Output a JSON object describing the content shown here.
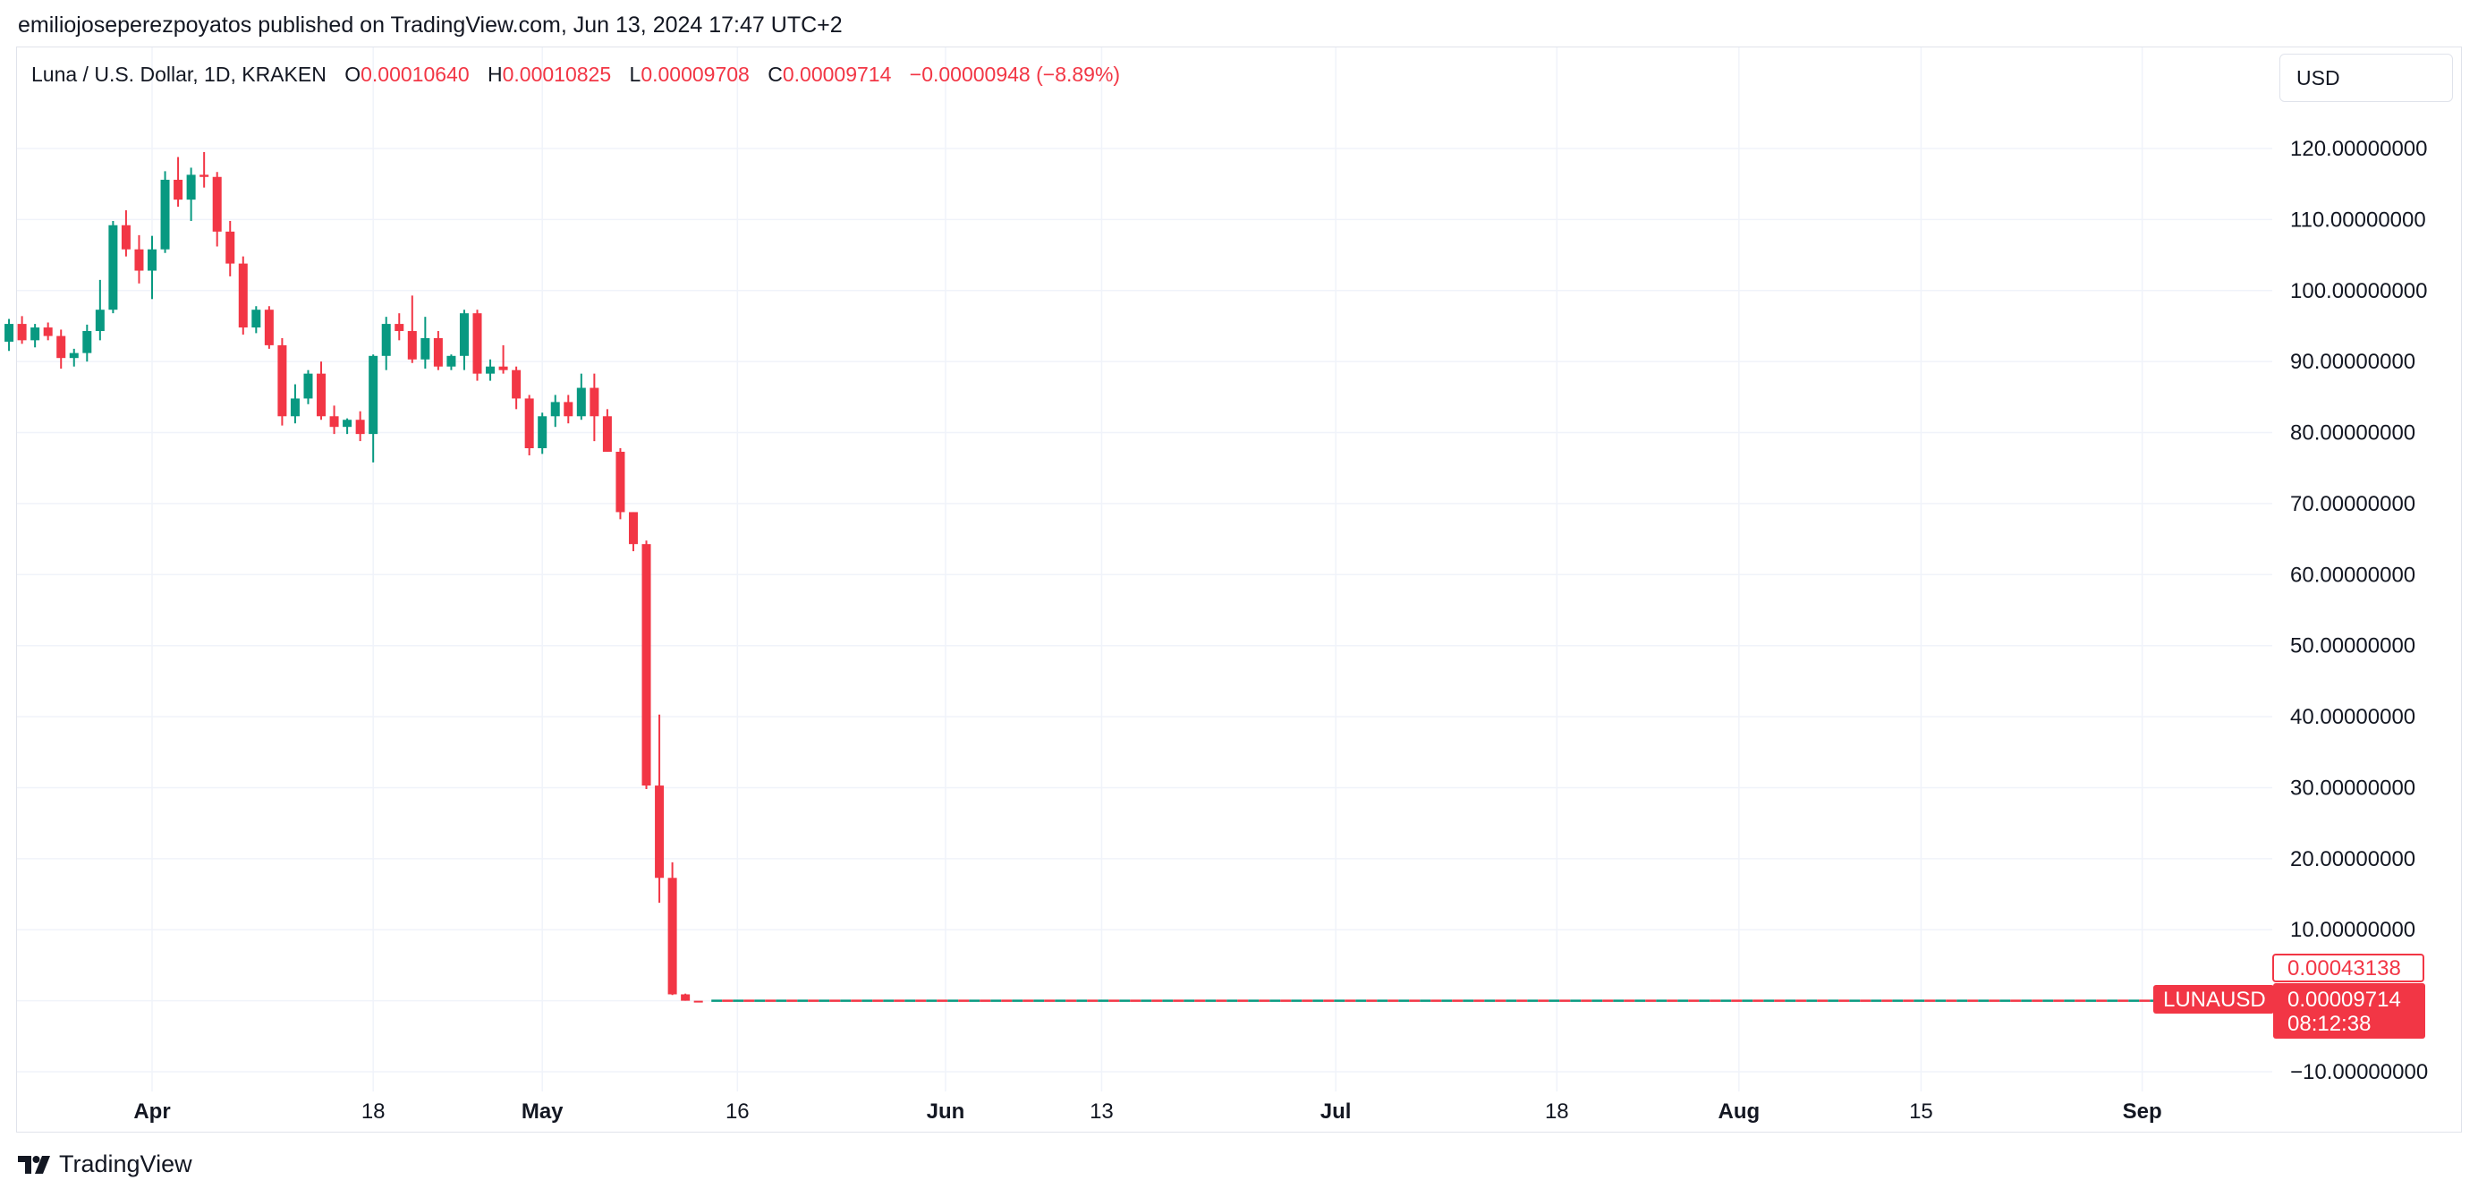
{
  "header": {
    "published": "emiliojoseperezpoyatos published on TradingView.com, Jun 13, 2024 17:47 UTC+2"
  },
  "legend": {
    "symbol": "Luna / U.S. Dollar, 1D, KRAKEN",
    "o_label": "O",
    "o_value": "0.00010640",
    "h_label": "H",
    "h_value": "0.00010825",
    "l_label": "L",
    "l_value": "0.00009708",
    "c_label": "C",
    "c_value": "0.00009714",
    "change": "−0.00000948 (−8.89%)"
  },
  "currency_button": "USD",
  "footer": {
    "brand": "TradingView"
  },
  "colors": {
    "up": "#089981",
    "down": "#f23645",
    "grid": "#f0f3fa",
    "axis_text": "#131722"
  },
  "chart_data": {
    "type": "candlestick",
    "symbol": "LUNAUSD",
    "y_ticks": [
      120,
      110,
      100,
      90,
      80,
      70,
      60,
      50,
      40,
      30,
      20,
      10,
      -10
    ],
    "y_tick_labels": [
      "120.00000000",
      "110.00000000",
      "100.00000000",
      "90.00000000",
      "80.00000000",
      "70.00000000",
      "60.00000000",
      "50.00000000",
      "40.00000000",
      "30.00000000",
      "20.00000000",
      "10.00000000",
      "−10.00000000"
    ],
    "ylim": [
      -10,
      120
    ],
    "x_start": "2022-03-21",
    "x_end": "2022-09-06",
    "x_ticks": [
      {
        "date": "2022-04-01",
        "label": "Apr",
        "bold": true
      },
      {
        "date": "2022-04-18",
        "label": "18",
        "bold": false
      },
      {
        "date": "2022-05-01",
        "label": "May",
        "bold": true
      },
      {
        "date": "2022-05-16",
        "label": "16",
        "bold": false
      },
      {
        "date": "2022-06-01",
        "label": "Jun",
        "bold": true
      },
      {
        "date": "2022-06-13",
        "label": "13",
        "bold": false
      },
      {
        "date": "2022-07-01",
        "label": "Jul",
        "bold": true
      },
      {
        "date": "2022-07-18",
        "label": "18",
        "bold": false
      },
      {
        "date": "2022-08-01",
        "label": "Aug",
        "bold": true
      },
      {
        "date": "2022-08-15",
        "label": "15",
        "bold": false
      },
      {
        "date": "2022-09-01",
        "label": "Sep",
        "bold": true
      }
    ],
    "candles": [
      {
        "date": "2022-03-21",
        "o": 92.8,
        "h": 96.0,
        "l": 91.5,
        "c": 95.3
      },
      {
        "date": "2022-03-22",
        "o": 95.3,
        "h": 96.4,
        "l": 92.5,
        "c": 93.0
      },
      {
        "date": "2022-03-23",
        "o": 93.0,
        "h": 95.3,
        "l": 92.0,
        "c": 94.8
      },
      {
        "date": "2022-03-24",
        "o": 94.8,
        "h": 95.5,
        "l": 93.0,
        "c": 93.6
      },
      {
        "date": "2022-03-25",
        "o": 93.6,
        "h": 94.5,
        "l": 89.0,
        "c": 90.5
      },
      {
        "date": "2022-03-26",
        "o": 90.5,
        "h": 91.8,
        "l": 89.3,
        "c": 91.2
      },
      {
        "date": "2022-03-27",
        "o": 91.2,
        "h": 95.2,
        "l": 90.0,
        "c": 94.3
      },
      {
        "date": "2022-03-28",
        "o": 94.3,
        "h": 101.5,
        "l": 93.0,
        "c": 97.3
      },
      {
        "date": "2022-03-29",
        "o": 97.3,
        "h": 109.8,
        "l": 96.8,
        "c": 109.2
      },
      {
        "date": "2022-03-30",
        "o": 109.2,
        "h": 111.3,
        "l": 104.8,
        "c": 105.8
      },
      {
        "date": "2022-03-31",
        "o": 105.8,
        "h": 107.8,
        "l": 101.0,
        "c": 102.8
      },
      {
        "date": "2022-04-01",
        "o": 102.8,
        "h": 107.7,
        "l": 98.8,
        "c": 105.8
      },
      {
        "date": "2022-04-02",
        "o": 105.8,
        "h": 116.8,
        "l": 105.3,
        "c": 115.6
      },
      {
        "date": "2022-04-03",
        "o": 115.6,
        "h": 118.8,
        "l": 111.8,
        "c": 112.8
      },
      {
        "date": "2022-04-04",
        "o": 112.8,
        "h": 117.3,
        "l": 109.8,
        "c": 116.3
      },
      {
        "date": "2022-04-05",
        "o": 116.3,
        "h": 119.5,
        "l": 114.5,
        "c": 116.0
      },
      {
        "date": "2022-04-06",
        "o": 116.0,
        "h": 116.7,
        "l": 106.2,
        "c": 108.3
      },
      {
        "date": "2022-04-07",
        "o": 108.3,
        "h": 109.8,
        "l": 102.0,
        "c": 103.8
      },
      {
        "date": "2022-04-08",
        "o": 103.8,
        "h": 104.8,
        "l": 93.8,
        "c": 94.8
      },
      {
        "date": "2022-04-09",
        "o": 94.8,
        "h": 97.8,
        "l": 94.0,
        "c": 97.3
      },
      {
        "date": "2022-04-10",
        "o": 97.3,
        "h": 97.8,
        "l": 91.8,
        "c": 92.3
      },
      {
        "date": "2022-04-11",
        "o": 92.3,
        "h": 93.3,
        "l": 81.0,
        "c": 82.3
      },
      {
        "date": "2022-04-12",
        "o": 82.3,
        "h": 86.8,
        "l": 81.3,
        "c": 84.8
      },
      {
        "date": "2022-04-13",
        "o": 84.8,
        "h": 88.8,
        "l": 84.0,
        "c": 88.3
      },
      {
        "date": "2022-04-14",
        "o": 88.3,
        "h": 90.0,
        "l": 81.8,
        "c": 82.3
      },
      {
        "date": "2022-04-15",
        "o": 82.3,
        "h": 83.8,
        "l": 79.8,
        "c": 80.8
      },
      {
        "date": "2022-04-16",
        "o": 80.8,
        "h": 82.0,
        "l": 79.8,
        "c": 81.8
      },
      {
        "date": "2022-04-17",
        "o": 81.8,
        "h": 83.0,
        "l": 78.8,
        "c": 79.8
      },
      {
        "date": "2022-04-18",
        "o": 79.8,
        "h": 91.0,
        "l": 75.8,
        "c": 90.8
      },
      {
        "date": "2022-04-19",
        "o": 90.8,
        "h": 96.3,
        "l": 88.8,
        "c": 95.3
      },
      {
        "date": "2022-04-20",
        "o": 95.3,
        "h": 96.8,
        "l": 93.0,
        "c": 94.3
      },
      {
        "date": "2022-04-21",
        "o": 94.3,
        "h": 99.3,
        "l": 89.8,
        "c": 90.3
      },
      {
        "date": "2022-04-22",
        "o": 90.3,
        "h": 96.3,
        "l": 89.0,
        "c": 93.3
      },
      {
        "date": "2022-04-23",
        "o": 93.3,
        "h": 94.3,
        "l": 88.8,
        "c": 89.3
      },
      {
        "date": "2022-04-24",
        "o": 89.3,
        "h": 91.0,
        "l": 88.8,
        "c": 90.8
      },
      {
        "date": "2022-04-25",
        "o": 90.8,
        "h": 97.3,
        "l": 88.8,
        "c": 96.8
      },
      {
        "date": "2022-04-26",
        "o": 96.8,
        "h": 97.3,
        "l": 87.3,
        "c": 88.3
      },
      {
        "date": "2022-04-27",
        "o": 88.3,
        "h": 90.3,
        "l": 87.3,
        "c": 89.3
      },
      {
        "date": "2022-04-28",
        "o": 89.3,
        "h": 92.3,
        "l": 88.3,
        "c": 88.8
      },
      {
        "date": "2022-04-29",
        "o": 88.8,
        "h": 89.3,
        "l": 83.3,
        "c": 84.8
      },
      {
        "date": "2022-04-30",
        "o": 84.8,
        "h": 85.3,
        "l": 76.8,
        "c": 77.8
      },
      {
        "date": "2022-05-01",
        "o": 77.8,
        "h": 82.8,
        "l": 77.0,
        "c": 82.3
      },
      {
        "date": "2022-05-02",
        "o": 82.3,
        "h": 85.3,
        "l": 80.8,
        "c": 84.3
      },
      {
        "date": "2022-05-03",
        "o": 84.3,
        "h": 85.3,
        "l": 81.3,
        "c": 82.3
      },
      {
        "date": "2022-05-04",
        "o": 82.3,
        "h": 88.3,
        "l": 81.8,
        "c": 86.3
      },
      {
        "date": "2022-05-05",
        "o": 86.3,
        "h": 88.3,
        "l": 78.8,
        "c": 82.3
      },
      {
        "date": "2022-05-06",
        "o": 82.3,
        "h": 83.3,
        "l": 77.3,
        "c": 77.3
      },
      {
        "date": "2022-05-07",
        "o": 77.3,
        "h": 77.8,
        "l": 67.8,
        "c": 68.8
      },
      {
        "date": "2022-05-08",
        "o": 68.8,
        "h": 68.8,
        "l": 63.3,
        "c": 64.3
      },
      {
        "date": "2022-05-09",
        "o": 64.3,
        "h": 64.8,
        "l": 29.8,
        "c": 30.3
      },
      {
        "date": "2022-05-10",
        "o": 30.3,
        "h": 40.3,
        "l": 13.8,
        "c": 17.3
      },
      {
        "date": "2022-05-11",
        "o": 17.3,
        "h": 19.5,
        "l": 0.8,
        "c": 0.9
      },
      {
        "date": "2022-05-12",
        "o": 0.9,
        "h": 1.0,
        "l": 0.0003,
        "c": 0.0003
      },
      {
        "date": "2022-05-13",
        "o": 0.00043138,
        "h": 0.00045,
        "l": 0.0001,
        "c": 0.0001
      }
    ],
    "flat_line": {
      "start": "2022-05-14",
      "end": "2022-09-06",
      "value": 9.714e-05
    },
    "price_labels": {
      "symbol_tag": "LUNAUSD",
      "high_label": "0.00043138",
      "last_price": "0.00009714",
      "countdown": "08:12:38"
    }
  }
}
